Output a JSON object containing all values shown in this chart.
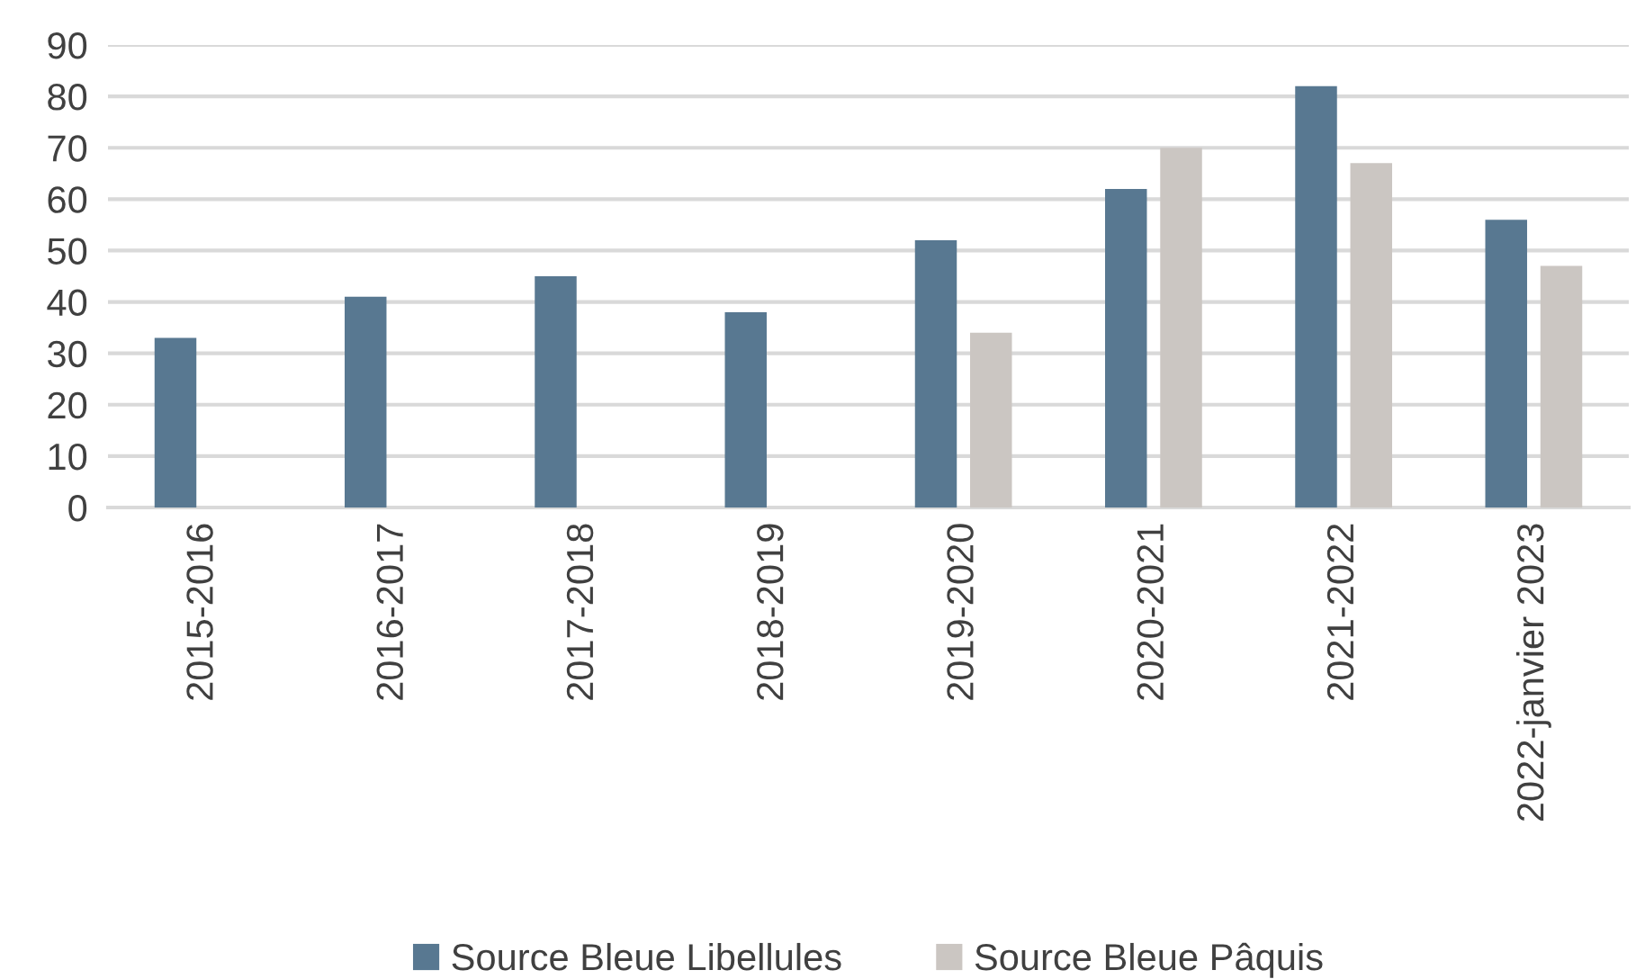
{
  "chart_data": {
    "type": "bar",
    "categories": [
      "2015-2016",
      "2016-2017",
      "2017-2018",
      "2018-2019",
      "2019-2020",
      "2020-2021",
      "2021-2022",
      "2022-janvier 2023"
    ],
    "series": [
      {
        "name": "Source Bleue Libellules",
        "color": "#587891",
        "values": [
          33,
          41,
          45,
          38,
          52,
          62,
          82,
          56
        ]
      },
      {
        "name": "Source Bleue Pâquis",
        "color": "#cbc6c2",
        "values": [
          null,
          null,
          null,
          null,
          34,
          70,
          67,
          47
        ]
      }
    ],
    "ylim": [
      0,
      90
    ],
    "yticks": [
      0,
      10,
      20,
      30,
      40,
      50,
      60,
      70,
      80,
      90
    ],
    "grid": "y",
    "legend": "bottom"
  }
}
